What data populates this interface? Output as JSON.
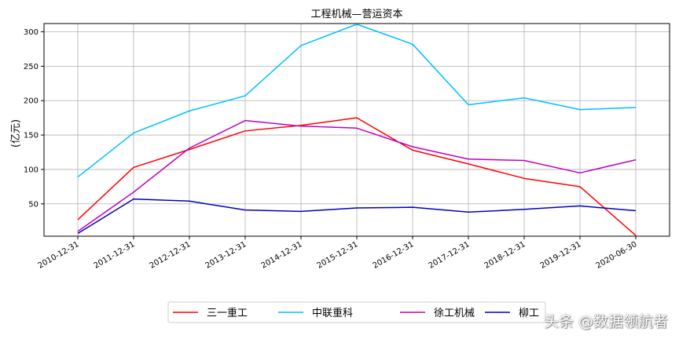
{
  "chart_data": {
    "type": "line",
    "title": "工程机械—营运资本",
    "ylabel": "(亿元)",
    "xlabel": "",
    "categories": [
      "2010-12-31",
      "2011-12-31",
      "2012-12-31",
      "2013-12-31",
      "2014-12-31",
      "2015-12-31",
      "2016-12-31",
      "2017-12-31",
      "2018-12-31",
      "2019-12-31",
      "2020-06-30"
    ],
    "ylim": [
      3,
      312
    ],
    "yticks": [
      50,
      100,
      150,
      200,
      250,
      300
    ],
    "grid": true,
    "legend_position": "bottom-center",
    "series": [
      {
        "name": "三一重工",
        "color": "#ff0000",
        "values": [
          27,
          103,
          129,
          156,
          164,
          175,
          128,
          108,
          87,
          75,
          4
        ]
      },
      {
        "name": "中联重科",
        "color": "#00bfff",
        "values": [
          89,
          153,
          185,
          207,
          280,
          311,
          282,
          194,
          204,
          187,
          190
        ]
      },
      {
        "name": "徐工机械",
        "color": "#bf00bf",
        "values": [
          10,
          67,
          131,
          171,
          163,
          160,
          133,
          115,
          113,
          95,
          114
        ]
      },
      {
        "name": "柳工",
        "color": "#0000bf",
        "values": [
          7,
          57,
          54,
          41,
          39,
          44,
          45,
          38,
          42,
          47,
          40
        ]
      }
    ]
  },
  "watermark": "头条 @数据领航者"
}
